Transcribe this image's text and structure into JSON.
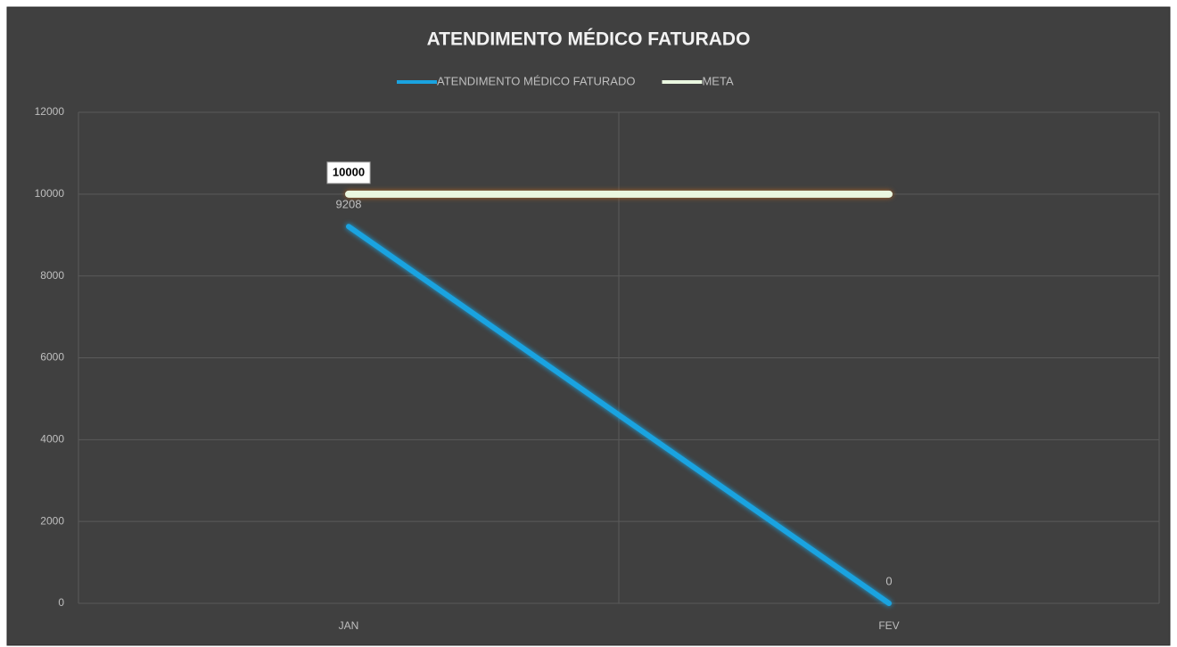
{
  "chart_data": {
    "type": "line",
    "title": "ATENDIMENTO MÉDICO FATURADO",
    "categories": [
      "JAN",
      "FEV"
    ],
    "series": [
      {
        "name": "ATENDIMENTO MÉDICO FATURADO",
        "color": "#1aa3e0",
        "values": [
          9208,
          0
        ],
        "show_labels": [
          true,
          true
        ]
      },
      {
        "name": "META",
        "color": "#eaf7e0",
        "values": [
          10000,
          10000
        ],
        "show_labels": [
          true,
          false
        ]
      }
    ],
    "ylim": [
      0,
      12000
    ],
    "yticks": [
      0,
      2000,
      4000,
      6000,
      8000,
      10000,
      12000
    ],
    "grid": true
  }
}
